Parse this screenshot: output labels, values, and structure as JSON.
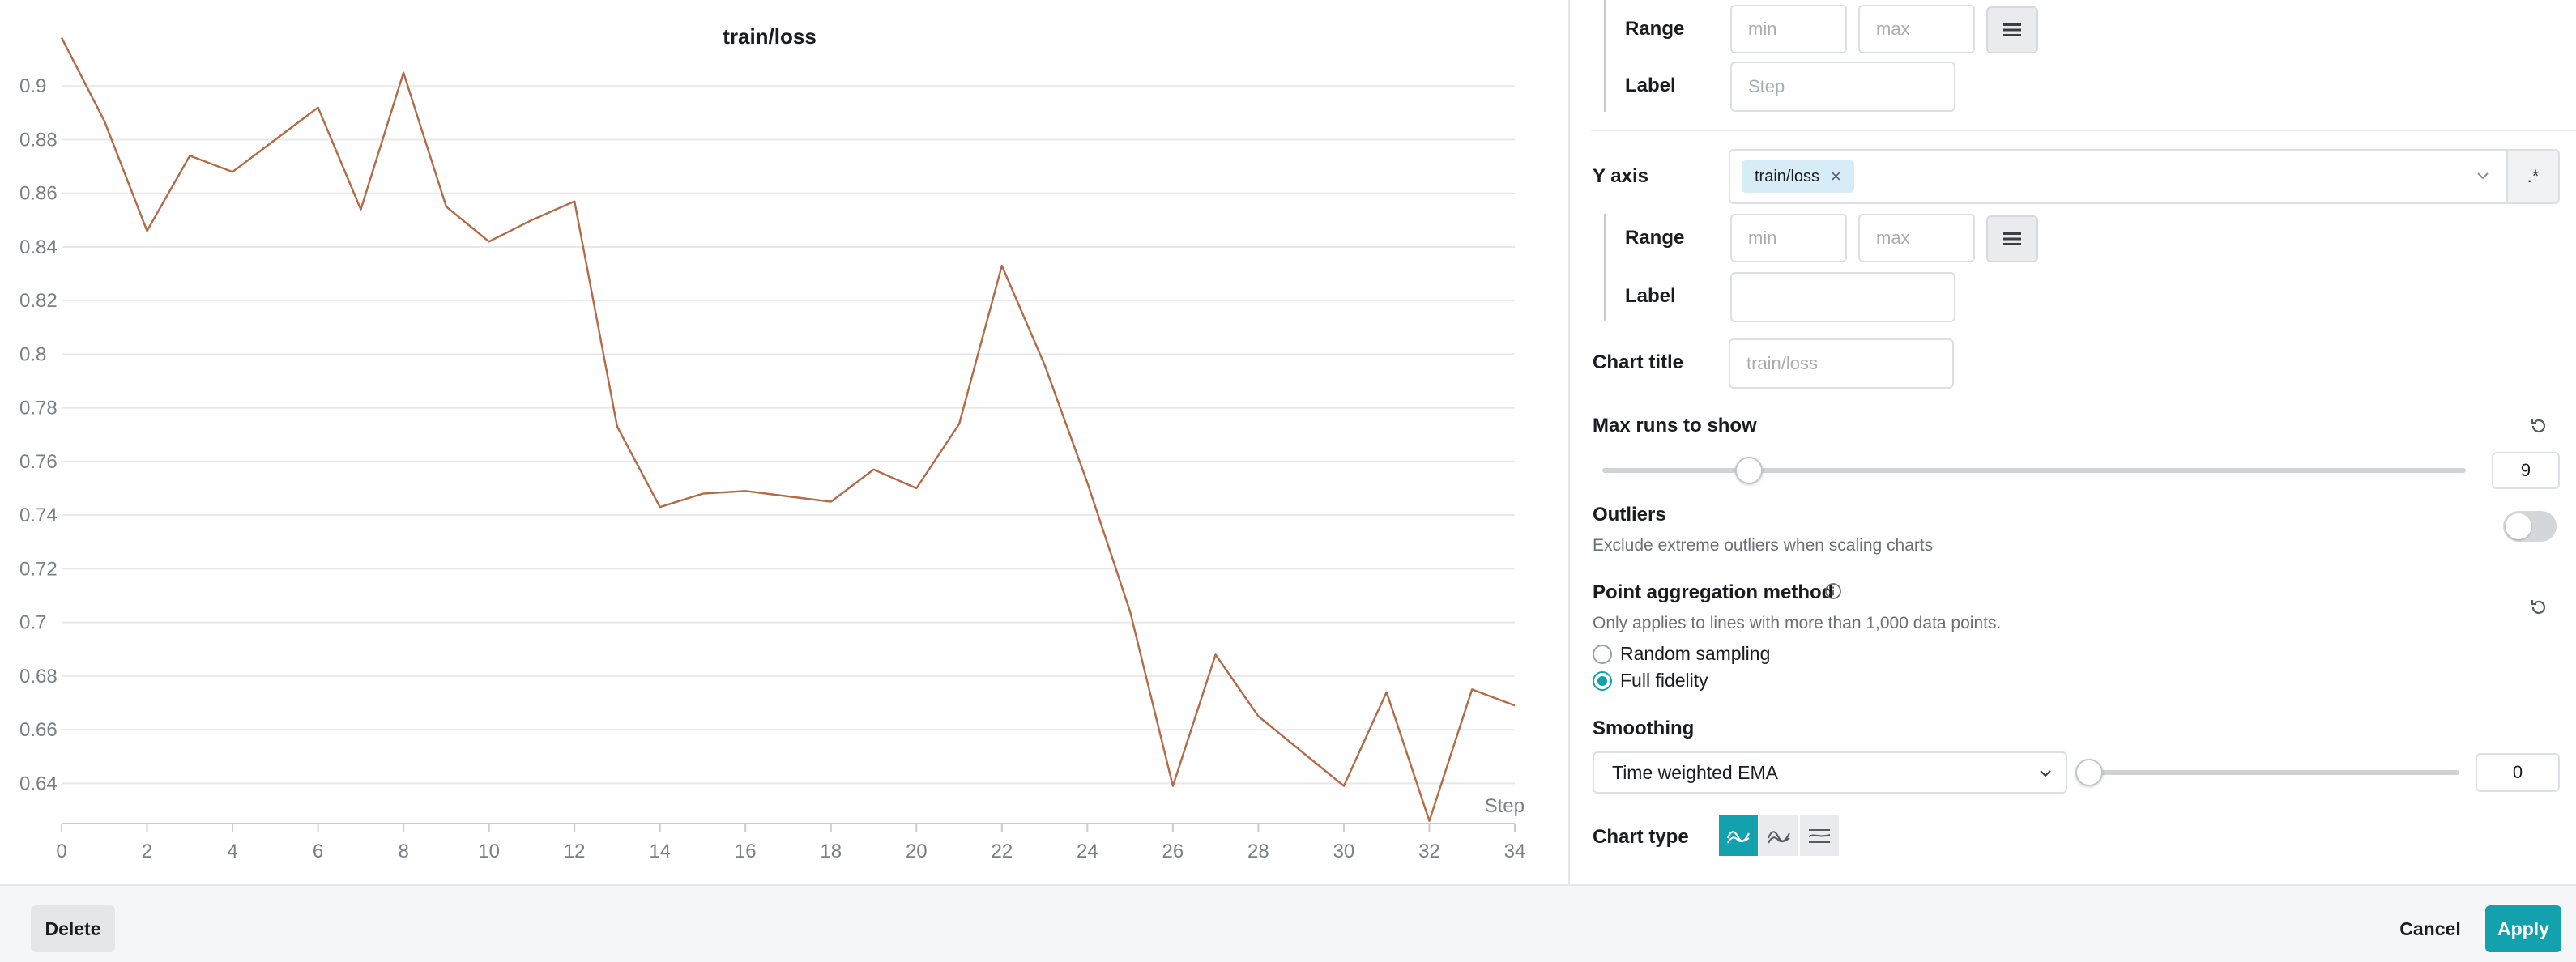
{
  "chart": {
    "title": "train/loss",
    "x_axis_label": "Step",
    "line_color": "#b36a46"
  },
  "chart_data": {
    "type": "line",
    "title": "train/loss",
    "xlabel": "Step",
    "ylabel": "",
    "xlim": [
      0,
      34
    ],
    "ylim": [
      0.625,
      0.92
    ],
    "x_ticks": [
      0,
      2,
      4,
      6,
      8,
      10,
      12,
      14,
      16,
      18,
      20,
      22,
      24,
      26,
      28,
      30,
      32,
      34
    ],
    "y_ticks": [
      0.64,
      0.66,
      0.68,
      0.7,
      0.72,
      0.74,
      0.76,
      0.78,
      0.8,
      0.82,
      0.84,
      0.86,
      0.88,
      0.9
    ],
    "y_tick_labels": [
      "0.64",
      "0.66",
      "0.68",
      "0.7",
      "0.72",
      "0.74",
      "0.76",
      "0.78",
      "0.8",
      "0.82",
      "0.84",
      "0.86",
      "0.88",
      "0.9"
    ],
    "grid": "horizontal",
    "series": [
      {
        "x": [
          0,
          1,
          2,
          3,
          4,
          5,
          6,
          7,
          8,
          9,
          10,
          11,
          12,
          13,
          14,
          15,
          16,
          17,
          18,
          19,
          20,
          21,
          22,
          23,
          24,
          25,
          26,
          27,
          28,
          29,
          30,
          31,
          32,
          33,
          34
        ],
        "values": [
          0.918,
          0.887,
          0.846,
          0.874,
          0.868,
          0.88,
          0.892,
          0.854,
          0.905,
          0.855,
          0.842,
          0.85,
          0.857,
          0.773,
          0.743,
          0.748,
          0.749,
          0.747,
          0.745,
          0.757,
          0.75,
          0.774,
          0.833,
          0.796,
          0.752,
          0.704,
          0.639,
          0.688,
          0.665,
          0.652,
          0.639,
          0.674,
          0.626,
          0.675,
          0.669
        ]
      }
    ]
  },
  "settings": {
    "x_range_label": "Range",
    "x_range_min_placeholder": "min",
    "x_range_max_placeholder": "max",
    "x_label_label": "Label",
    "x_label_placeholder": "Step",
    "y_axis_label": "Y axis",
    "y_axis_tag": "train/loss",
    "y_axis_tag_remove": "×",
    "y_axis_regex": ".*",
    "y_range_label": "Range",
    "y_range_min_placeholder": "min",
    "y_range_max_placeholder": "max",
    "y_label_label": "Label",
    "y_label_placeholder": "",
    "chart_title_label": "Chart title",
    "chart_title_placeholder": "train/loss",
    "max_runs_label": "Max runs to show",
    "max_runs_value": "9",
    "max_runs_fraction": 0.17,
    "outliers_label": "Outliers",
    "outliers_desc": "Exclude extreme outliers when scaling charts",
    "outliers_on": false,
    "aggregation_label": "Point aggregation method",
    "aggregation_desc": "Only applies to lines with more than 1,000 data points.",
    "aggregation_options": [
      "Random sampling",
      "Full fidelity"
    ],
    "aggregation_selected": "Full fidelity",
    "smoothing_label": "Smoothing",
    "smoothing_method": "Time weighted EMA",
    "smoothing_value": "0",
    "chart_type_label": "Chart type",
    "accent_color": "#13a1ae"
  },
  "footer": {
    "delete_label": "Delete",
    "cancel_label": "Cancel",
    "apply_label": "Apply"
  }
}
